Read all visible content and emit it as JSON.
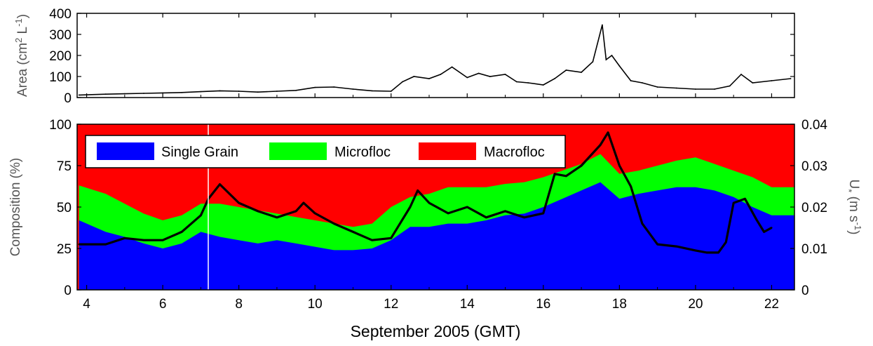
{
  "chart_data": [
    {
      "type": "line",
      "ylabel": "Area (cm² L⁻¹)",
      "ylabel_main": "Area (cm",
      "ylabel_sup1": "2",
      "ylabel_mid": " L",
      "ylabel_sup2": "-1",
      "ylabel_end": ")",
      "ylim": [
        0,
        400
      ],
      "yticks": [
        "0",
        "100",
        "200",
        "300",
        "400"
      ],
      "ytick_values": [
        0,
        100,
        200,
        300,
        400
      ],
      "series": [
        {
          "x": [
            3.8,
            4.5,
            5.0,
            5.5,
            6.0,
            6.5,
            7.0,
            7.5,
            8.0,
            8.5,
            9.0,
            9.5,
            10.0,
            10.5,
            11.0,
            11.5,
            12.0,
            12.3,
            12.6,
            13.0,
            13.3,
            13.6,
            14.0,
            14.3,
            14.6,
            15.0,
            15.3,
            15.6,
            16.0,
            16.3,
            16.6,
            17.0,
            17.3,
            17.55,
            17.65,
            17.8,
            18.0,
            18.3,
            18.6,
            19.0,
            19.5,
            20.0,
            20.5,
            20.9,
            21.2,
            21.5,
            22.0,
            22.5
          ],
          "y": [
            12,
            16,
            18,
            20,
            22,
            24,
            28,
            32,
            30,
            26,
            30,
            34,
            48,
            50,
            40,
            32,
            30,
            75,
            100,
            90,
            110,
            145,
            95,
            115,
            100,
            110,
            75,
            70,
            60,
            90,
            130,
            120,
            170,
            345,
            180,
            200,
            150,
            80,
            70,
            50,
            45,
            40,
            40,
            55,
            110,
            70,
            80,
            90
          ],
          "color": "#000000"
        }
      ]
    },
    {
      "type": "area",
      "ylabel": "Composition (%)",
      "ylim": [
        0,
        100
      ],
      "yticks": [
        "0",
        "25",
        "50",
        "75",
        "100"
      ],
      "ytick_values": [
        0,
        25,
        50,
        75,
        100
      ],
      "y2label": "U* (m s-1)",
      "y2label_main": "U",
      "y2label_sub": "*",
      "y2label_unit": " (m s",
      "y2label_sup": "-1",
      "y2label_end": ")",
      "y2lim": [
        0,
        0.04
      ],
      "y2ticks": [
        "0",
        "0.01",
        "0.02",
        "0.03",
        "0.04"
      ],
      "y2tick_values": [
        0,
        0.01,
        0.02,
        0.03,
        0.04
      ],
      "xlabel": "September 2005 (GMT)",
      "xlim": [
        3.75,
        22.6
      ],
      "xticks": [
        "4",
        "6",
        "8",
        "10",
        "12",
        "14",
        "16",
        "18",
        "20",
        "22"
      ],
      "xtick_values": [
        4,
        6,
        8,
        10,
        12,
        14,
        16,
        18,
        20,
        22
      ],
      "legend": {
        "position": "top-left",
        "entries": [
          {
            "name": "Single Grain",
            "color": "#0000ff"
          },
          {
            "name": "Microfloc",
            "color": "#00ff00"
          },
          {
            "name": "Macrofloc",
            "color": "#ff0000"
          }
        ]
      },
      "x": [
        3.8,
        4.5,
        5.0,
        5.5,
        6.0,
        6.5,
        7.0,
        7.5,
        8.0,
        8.5,
        9.0,
        9.5,
        10.0,
        10.5,
        11.0,
        11.5,
        12.0,
        12.5,
        13.0,
        13.5,
        14.0,
        14.5,
        15.0,
        15.5,
        16.0,
        16.5,
        17.0,
        17.5,
        18.0,
        18.5,
        19.0,
        19.5,
        20.0,
        20.5,
        21.0,
        21.5,
        22.0,
        22.6
      ],
      "series": [
        {
          "name": "Single Grain",
          "color": "#0000ff",
          "values": [
            42,
            35,
            32,
            28,
            25,
            28,
            35,
            32,
            30,
            28,
            30,
            28,
            26,
            24,
            24,
            25,
            30,
            38,
            38,
            40,
            40,
            42,
            45,
            46,
            50,
            55,
            60,
            65,
            55,
            58,
            60,
            62,
            62,
            60,
            56,
            50,
            45,
            45
          ]
        },
        {
          "name": "Microfloc",
          "color": "#00ff00",
          "values": [
            63,
            58,
            52,
            46,
            42,
            45,
            52,
            52,
            50,
            48,
            46,
            44,
            42,
            40,
            38,
            40,
            50,
            56,
            58,
            62,
            62,
            62,
            64,
            65,
            68,
            72,
            76,
            82,
            70,
            72,
            75,
            78,
            80,
            76,
            72,
            68,
            62,
            62
          ]
        },
        {
          "name": "Macrofloc",
          "color": "#ff0000",
          "values": [
            100,
            100,
            100,
            100,
            100,
            100,
            100,
            100,
            100,
            100,
            100,
            100,
            100,
            100,
            100,
            100,
            100,
            100,
            100,
            100,
            100,
            100,
            100,
            100,
            100,
            100,
            100,
            100,
            100,
            100,
            100,
            100,
            100,
            100,
            100,
            100,
            100,
            100
          ]
        }
      ],
      "ustar": {
        "color": "#000000",
        "x": [
          3.8,
          4.5,
          5.0,
          5.5,
          6.0,
          6.5,
          7.0,
          7.2,
          7.5,
          8.0,
          8.5,
          9.0,
          9.5,
          9.7,
          10.0,
          10.5,
          11.0,
          11.5,
          12.0,
          12.5,
          12.7,
          13.0,
          13.5,
          14.0,
          14.5,
          15.0,
          15.5,
          16.0,
          16.3,
          16.6,
          17.0,
          17.5,
          17.7,
          18.0,
          18.3,
          18.6,
          19.0,
          19.5,
          20.0,
          20.3,
          20.6,
          20.8,
          21.0,
          21.3,
          21.6,
          21.8,
          22.0
        ],
        "y": [
          0.011,
          0.011,
          0.0125,
          0.012,
          0.012,
          0.014,
          0.018,
          0.022,
          0.0255,
          0.021,
          0.019,
          0.0175,
          0.019,
          0.021,
          0.0185,
          0.016,
          0.014,
          0.012,
          0.0125,
          0.02,
          0.024,
          0.021,
          0.0185,
          0.02,
          0.0175,
          0.019,
          0.0175,
          0.0185,
          0.028,
          0.0275,
          0.03,
          0.035,
          0.038,
          0.03,
          0.025,
          0.016,
          0.011,
          0.0105,
          0.0095,
          0.009,
          0.009,
          0.0115,
          0.021,
          0.022,
          0.017,
          0.014,
          0.015
        ]
      }
    }
  ]
}
